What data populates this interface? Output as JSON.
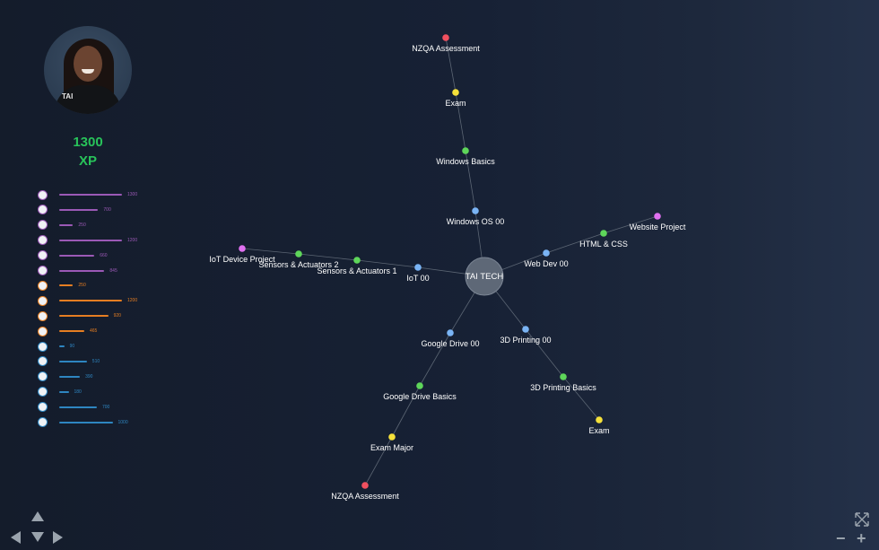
{
  "profile": {
    "avatar_logo": "TAI",
    "xp_value": "1300",
    "xp_unit": "XP"
  },
  "skills": [
    {
      "icon": "skill-badge-icon",
      "value": "1300",
      "fill": 1.0,
      "color": "#9b59b6"
    },
    {
      "icon": "skill-badge-icon",
      "value": "700",
      "fill": 0.62,
      "color": "#9b59b6"
    },
    {
      "icon": "skill-badge-icon",
      "value": "250",
      "fill": 0.22,
      "color": "#9b59b6"
    },
    {
      "icon": "skill-badge-icon",
      "value": "1200",
      "fill": 1.0,
      "color": "#9b59b6"
    },
    {
      "icon": "skill-badge-icon",
      "value": "660",
      "fill": 0.56,
      "color": "#9b59b6"
    },
    {
      "icon": "skill-badge-icon",
      "value": "845",
      "fill": 0.72,
      "color": "#9b59b6"
    },
    {
      "icon": "skill-badge-icon",
      "value": "250",
      "fill": 0.22,
      "color": "#e67e22"
    },
    {
      "icon": "skill-badge-icon",
      "value": "1200",
      "fill": 1.0,
      "color": "#e67e22"
    },
    {
      "icon": "skill-badge-icon",
      "value": "920",
      "fill": 0.78,
      "color": "#e67e22"
    },
    {
      "icon": "skill-badge-icon",
      "value": "465",
      "fill": 0.4,
      "color": "#e67e22"
    },
    {
      "icon": "skill-badge-icon",
      "value": "90",
      "fill": 0.08,
      "color": "#2e86c1"
    },
    {
      "icon": "skill-badge-icon",
      "value": "510",
      "fill": 0.44,
      "color": "#2e86c1"
    },
    {
      "icon": "skill-badge-icon",
      "value": "390",
      "fill": 0.33,
      "color": "#2e86c1"
    },
    {
      "icon": "skill-badge-icon",
      "value": "180",
      "fill": 0.15,
      "color": "#2e86c1"
    },
    {
      "icon": "skill-badge-icon",
      "value": "700",
      "fill": 0.6,
      "color": "#2e86c1"
    },
    {
      "icon": "skill-badge-icon",
      "value": "1000",
      "fill": 0.85,
      "color": "#2e86c1"
    }
  ],
  "graph": {
    "center_label": "TAI TECH",
    "node_colors": {
      "blue": "#7ab4f5",
      "green": "#5ed65a",
      "yellow": "#f5e13a",
      "red": "#f0505f",
      "pink": "#e070f0"
    },
    "nodes": [
      {
        "id": "win-os",
        "label": "Windows OS 00",
        "color": "blue"
      },
      {
        "id": "win-basics",
        "label": "Windows Basics",
        "color": "green"
      },
      {
        "id": "win-exam",
        "label": "Exam",
        "color": "yellow"
      },
      {
        "id": "win-nzqa",
        "label": "NZQA Assessment",
        "color": "red"
      },
      {
        "id": "webdev",
        "label": "Web Dev 00",
        "color": "blue"
      },
      {
        "id": "htmlcss",
        "label": "HTML & CSS",
        "color": "green"
      },
      {
        "id": "webproj",
        "label": "Website Project",
        "color": "pink"
      },
      {
        "id": "iot",
        "label": "IoT 00",
        "color": "blue"
      },
      {
        "id": "sens1",
        "label": "Sensors & Actuators 1",
        "color": "green"
      },
      {
        "id": "sens2",
        "label": "Sensors & Actuators 2",
        "color": "green"
      },
      {
        "id": "iotproj",
        "label": "IoT Device Project",
        "color": "pink"
      },
      {
        "id": "gdrive",
        "label": "Google Drive 00",
        "color": "blue"
      },
      {
        "id": "gbasics",
        "label": "Google Drive Basics",
        "color": "green"
      },
      {
        "id": "gexam",
        "label": "Exam Major",
        "color": "yellow"
      },
      {
        "id": "gnzqa",
        "label": "NZQA Assessment",
        "color": "red"
      },
      {
        "id": "print3d",
        "label": "3D Printing 00",
        "color": "blue"
      },
      {
        "id": "p3dbasics",
        "label": "3D Printing Basics",
        "color": "green"
      },
      {
        "id": "p3dexam",
        "label": "Exam",
        "color": "yellow"
      }
    ]
  },
  "controls": {
    "zoom_out_label": "−",
    "zoom_in_label": "+"
  }
}
